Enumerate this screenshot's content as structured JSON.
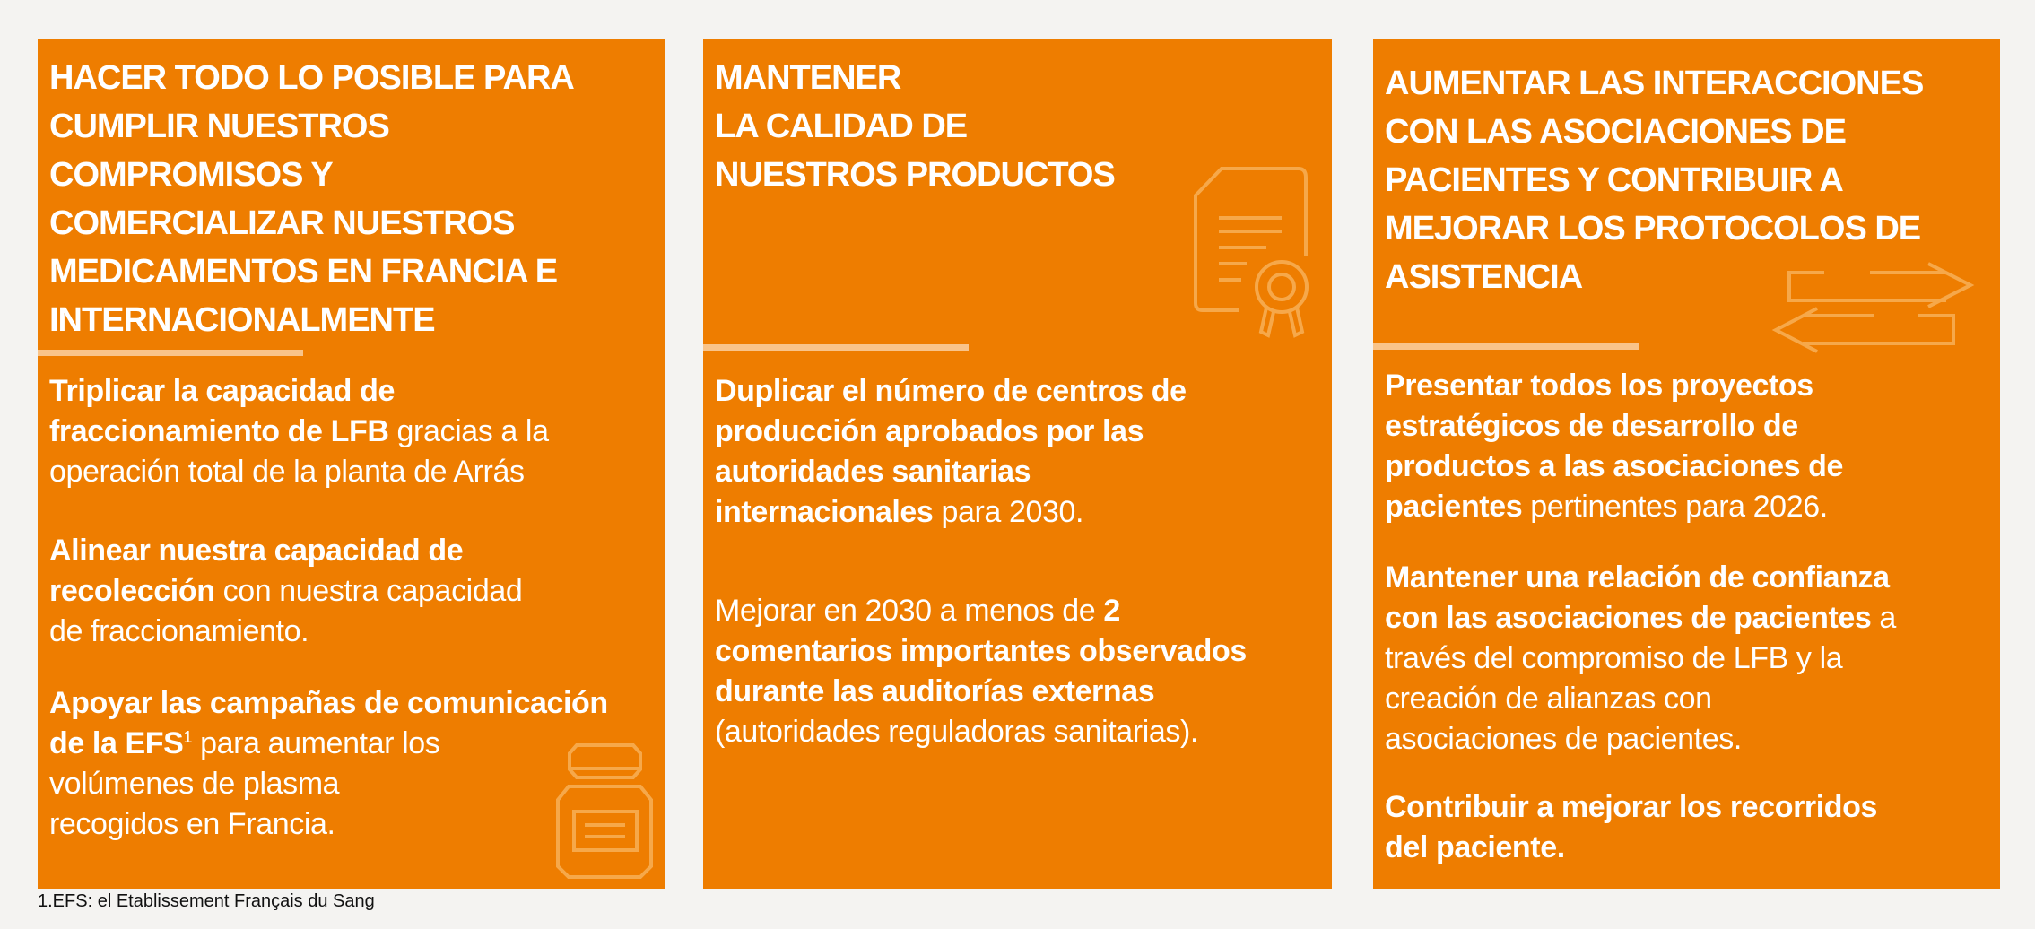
{
  "colors": {
    "background": "#f4f3f1",
    "panel": "#ee7d00",
    "divider": "#f9c48a",
    "icon_stroke": "#f6a84a",
    "text": "#ffffff"
  },
  "panels": [
    {
      "title_lines": [
        "HACER TODO LO POSIBLE PARA",
        "CUMPLIR NUESTROS",
        "COMPROMISOS Y",
        "COMERCIALIZAR NUESTROS",
        "MEDICAMENTOS EN FRANCIA E",
        "INTERNACIONALMENTE"
      ],
      "icon": "bottle-icon",
      "paragraphs": [
        {
          "lines": [
            [
              [
                "Triplicar la capacidad de",
                "b"
              ]
            ],
            [
              [
                "fraccionamiento de LFB",
                "b"
              ],
              [
                " gracias a la",
                ""
              ]
            ],
            [
              [
                "operación total de la planta de Arrás",
                ""
              ]
            ]
          ]
        },
        {
          "lines": [
            [
              [
                "Alinear nuestra capacidad de",
                "b"
              ]
            ],
            [
              [
                "recolección",
                "b"
              ],
              [
                " con nuestra capacidad",
                ""
              ]
            ],
            [
              [
                "de fraccionamiento.",
                ""
              ]
            ]
          ]
        },
        {
          "lines": [
            [
              [
                "Apoyar las campañas de comunicación",
                "b"
              ]
            ],
            [
              [
                "de la EFS",
                "b"
              ],
              [
                "1",
                "sup"
              ],
              [
                " para aumentar los",
                ""
              ]
            ],
            [
              [
                "volúmenes de plasma",
                ""
              ]
            ],
            [
              [
                "recogidos en Francia.",
                ""
              ]
            ]
          ]
        }
      ]
    },
    {
      "title_lines": [
        "MANTENER",
        "LA CALIDAD DE",
        "NUESTROS PRODUCTOS"
      ],
      "icon": "certificate-icon",
      "paragraphs": [
        {
          "lines": [
            [
              [
                "Duplicar el número de centros de",
                "b"
              ]
            ],
            [
              [
                "producción aprobados por las",
                "b"
              ]
            ],
            [
              [
                "autoridades sanitarias",
                "b"
              ]
            ],
            [
              [
                "internacionales",
                "b"
              ],
              [
                " para 2030.",
                ""
              ]
            ]
          ]
        },
        {
          "lines": [
            [
              [
                "Mejorar en 2030 a menos de ",
                ""
              ],
              [
                "2",
                "b"
              ]
            ],
            [
              [
                "comentarios importantes observados",
                "b"
              ]
            ],
            [
              [
                "durante las auditorías externas",
                "b"
              ]
            ],
            [
              [
                "(autoridades reguladoras sanitarias).",
                ""
              ]
            ]
          ]
        }
      ]
    },
    {
      "title_lines": [
        "AUMENTAR LAS INTERACCIONES",
        "CON LAS ASOCIACIONES DE",
        "PACIENTES Y CONTRIBUIR A",
        "MEJORAR LOS PROTOCOLOS DE",
        "ASISTENCIA"
      ],
      "icon": "exchange-arrows-icon",
      "paragraphs": [
        {
          "lines": [
            [
              [
                "Presentar todos los proyectos",
                "b"
              ]
            ],
            [
              [
                "estratégicos de desarrollo de",
                "b"
              ]
            ],
            [
              [
                "productos a las asociaciones de",
                "b"
              ]
            ],
            [
              [
                "pacientes",
                "b"
              ],
              [
                " pertinentes para 2026.",
                ""
              ]
            ]
          ]
        },
        {
          "lines": [
            [
              [
                "Mantener una relación de confianza",
                "b"
              ]
            ],
            [
              [
                "con las asociaciones de pacientes",
                "b"
              ],
              [
                " a",
                ""
              ]
            ],
            [
              [
                "través del compromiso de LFB y la",
                ""
              ]
            ],
            [
              [
                "creación de alianzas con",
                ""
              ]
            ],
            [
              [
                "asociaciones de pacientes.",
                ""
              ]
            ]
          ]
        },
        {
          "lines": [
            [
              [
                "Contribuir a mejorar los recorridos",
                "b"
              ]
            ],
            [
              [
                "del paciente.",
                "b"
              ]
            ]
          ]
        }
      ]
    }
  ],
  "footnote": "1.EFS: el Etablissement Français du Sang"
}
